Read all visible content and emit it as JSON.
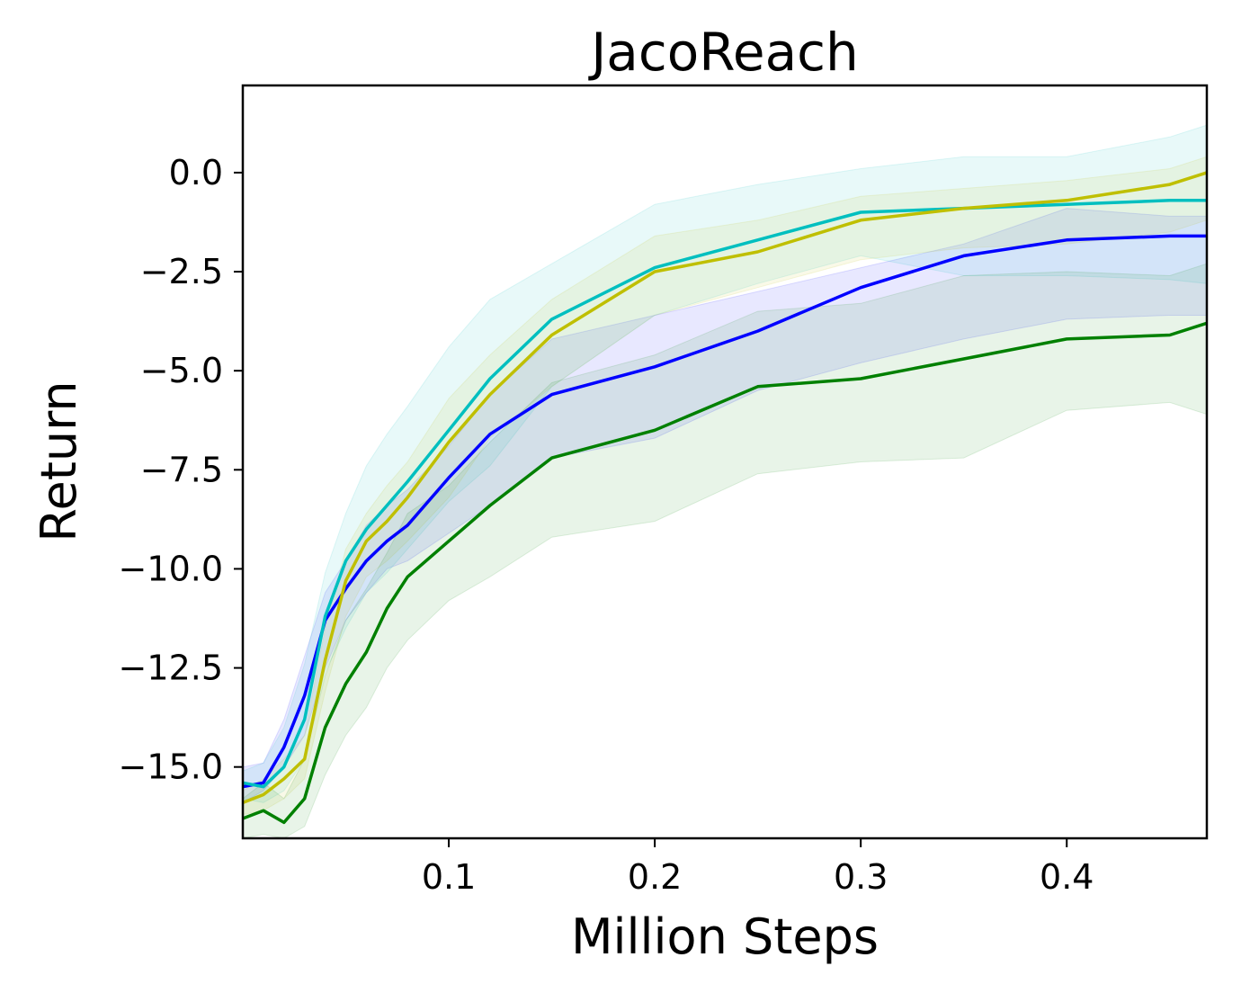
{
  "chart_data": {
    "type": "line",
    "title": "JacoReach",
    "xlabel": "Million Steps",
    "ylabel": "Return",
    "xlim": [
      0.0,
      0.468
    ],
    "ylim": [
      -16.8,
      2.2
    ],
    "xticks": [
      0.1,
      0.2,
      0.3,
      0.4
    ],
    "xtick_labels": [
      "0.1",
      "0.2",
      "0.3",
      "0.4"
    ],
    "yticks": [
      0.0,
      -2.5,
      -5.0,
      -7.5,
      -10.0,
      -12.5,
      -15.0
    ],
    "ytick_labels": [
      "0.0",
      "−2.5",
      "−5.0",
      "−7.5",
      "−10.0",
      "−12.5",
      "−15.0"
    ],
    "grid": false,
    "legend": "none",
    "x": [
      0.0,
      0.01,
      0.02,
      0.03,
      0.04,
      0.05,
      0.06,
      0.07,
      0.08,
      0.1,
      0.12,
      0.15,
      0.2,
      0.25,
      0.3,
      0.35,
      0.4,
      0.45,
      0.468
    ],
    "series": [
      {
        "color": "#0000ff",
        "values": [
          -15.5,
          -15.4,
          -14.5,
          -13.2,
          -11.3,
          -10.5,
          -9.8,
          -9.3,
          -8.9,
          -7.7,
          -6.6,
          -5.6,
          -4.9,
          -4.0,
          -2.9,
          -2.1,
          -1.7,
          -1.6,
          -1.6
        ],
        "lower": [
          -15.9,
          -15.6,
          -15.0,
          -14.2,
          -12.5,
          -11.3,
          -10.6,
          -10.0,
          -9.8,
          -9.1,
          -8.4,
          -7.2,
          -6.7,
          -5.5,
          -4.8,
          -4.2,
          -3.7,
          -3.6,
          -3.6
        ],
        "upper": [
          -15.0,
          -14.9,
          -13.8,
          -12.2,
          -10.6,
          -9.8,
          -8.9,
          -8.4,
          -8.0,
          -6.9,
          -5.6,
          -4.2,
          -3.6,
          -3.0,
          -2.4,
          -1.8,
          -0.9,
          -1.1,
          -1.1
        ]
      },
      {
        "color": "#00bfbf",
        "values": [
          -15.4,
          -15.5,
          -15.0,
          -13.8,
          -11.2,
          -9.8,
          -9.0,
          -8.4,
          -7.8,
          -6.5,
          -5.2,
          -3.7,
          -2.4,
          -1.7,
          -1.0,
          -0.9,
          -0.8,
          -0.7,
          -0.7
        ],
        "lower": [
          -15.8,
          -15.9,
          -15.6,
          -14.8,
          -12.6,
          -11.5,
          -10.6,
          -10.1,
          -9.5,
          -8.3,
          -7.4,
          -5.4,
          -3.6,
          -2.8,
          -2.1,
          -2.6,
          -2.6,
          -2.7,
          -2.8
        ],
        "upper": [
          -15.1,
          -14.9,
          -14.0,
          -12.4,
          -10.1,
          -8.6,
          -7.4,
          -6.6,
          -5.9,
          -4.4,
          -3.2,
          -2.3,
          -0.8,
          -0.3,
          0.1,
          0.4,
          0.4,
          0.9,
          1.2
        ]
      },
      {
        "color": "#bfbf00",
        "values": [
          -15.9,
          -15.7,
          -15.3,
          -14.8,
          -12.3,
          -10.3,
          -9.3,
          -8.8,
          -8.2,
          -6.8,
          -5.6,
          -4.1,
          -2.5,
          -2.0,
          -1.2,
          -0.9,
          -0.7,
          -0.3,
          0.0
        ],
        "lower": [
          -16.2,
          -16.1,
          -15.8,
          -15.3,
          -13.1,
          -11.2,
          -10.2,
          -9.8,
          -9.3,
          -8.2,
          -6.7,
          -5.4,
          -3.6,
          -2.9,
          -2.2,
          -1.9,
          -1.8,
          -1.5,
          -1.2
        ],
        "upper": [
          -15.6,
          -15.3,
          -14.8,
          -14.2,
          -11.5,
          -9.5,
          -8.6,
          -7.9,
          -7.3,
          -5.7,
          -4.6,
          -3.2,
          -1.6,
          -1.2,
          -0.6,
          -0.4,
          -0.2,
          0.1,
          0.4
        ]
      },
      {
        "color": "#008000",
        "values": [
          -16.3,
          -16.1,
          -16.4,
          -15.8,
          -14.0,
          -12.9,
          -12.1,
          -11.0,
          -10.2,
          -9.3,
          -8.4,
          -7.2,
          -6.5,
          -5.4,
          -5.2,
          -4.7,
          -4.2,
          -4.1,
          -3.8
        ],
        "lower": [
          -16.8,
          -16.7,
          -16.8,
          -16.5,
          -15.2,
          -14.2,
          -13.5,
          -12.5,
          -11.8,
          -10.8,
          -10.2,
          -9.2,
          -8.8,
          -7.6,
          -7.3,
          -7.2,
          -6.0,
          -5.8,
          -6.1
        ],
        "upper": [
          -15.8,
          -15.4,
          -15.8,
          -14.8,
          -12.7,
          -11.3,
          -10.5,
          -9.6,
          -8.6,
          -7.9,
          -6.8,
          -5.3,
          -4.6,
          -3.5,
          -3.3,
          -2.6,
          -2.5,
          -2.6,
          -2.3
        ]
      }
    ]
  }
}
